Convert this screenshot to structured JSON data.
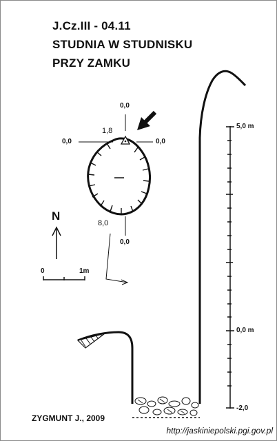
{
  "title": {
    "line1": "J.Cz.III - 04.11",
    "line2": "STUDNIA W STUDNISKU",
    "line3": "PRZY ZAMKU"
  },
  "plan": {
    "height_north": "0,0",
    "height_west": "0,0",
    "height_east": "0,0",
    "height_south": "0,0",
    "depth_entrance": "1,8",
    "depth_bottom": "8,0",
    "north_label": "N"
  },
  "scale_bar": {
    "start_label": "0",
    "end_label": "1m"
  },
  "section_scale": {
    "top_label": "5,0 m",
    "middle_label": "0,0 m",
    "bottom_label": "-2,0"
  },
  "author": "ZYGMUNT J., 2009",
  "source_url": "http://jaskiniepolski.pgi.gov.pl"
}
